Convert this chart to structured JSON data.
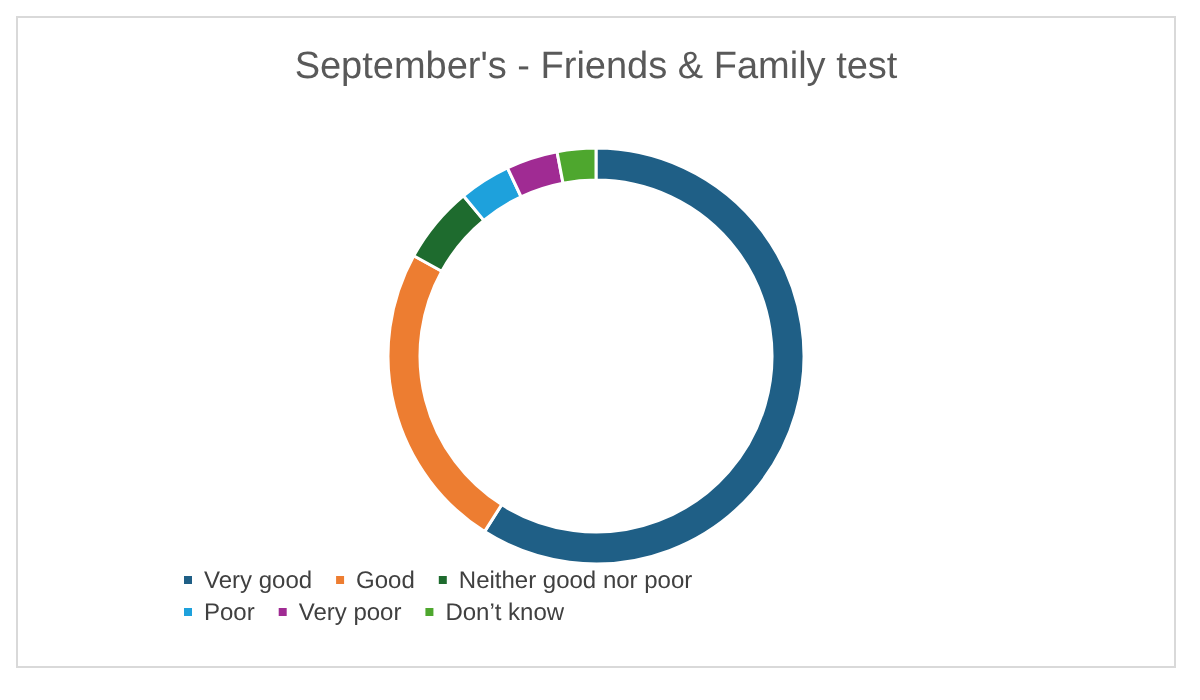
{
  "chart_data": {
    "type": "donut",
    "title": "September's - Friends & Family test",
    "categories": [
      "Very good",
      "Good",
      "Neither good nor poor",
      "Poor",
      "Very poor",
      "Don’t know"
    ],
    "values": [
      59,
      24,
      6,
      4,
      4,
      3
    ],
    "colors": [
      "#1f5f86",
      "#ed7d31",
      "#1e6b2e",
      "#1ea1dc",
      "#a02b93",
      "#4ea72e"
    ],
    "legend": "bottom"
  }
}
